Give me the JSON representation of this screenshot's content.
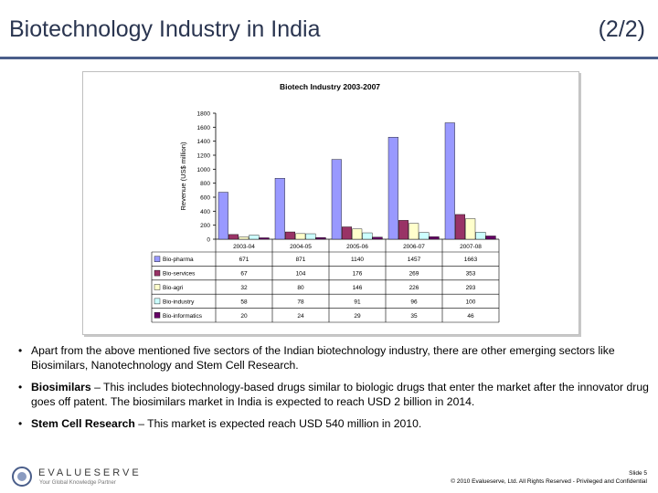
{
  "slide": {
    "title": "Biotechnology Industry in India",
    "part": "(2/2)"
  },
  "chart_data": {
    "type": "bar",
    "title": "Biotech Industry 2003-2007",
    "ylabel": "Revenue (US$ million)",
    "xlabel": "",
    "ylim": [
      0,
      1800
    ],
    "yticks": [
      0,
      200,
      400,
      600,
      800,
      1000,
      1200,
      1400,
      1600,
      1800
    ],
    "grid": false,
    "legend": "data-table",
    "categories": [
      "2003-04",
      "2004-05",
      "2005-06",
      "2006-07",
      "2007-08"
    ],
    "series": [
      {
        "name": "Bio-pharma",
        "color": "#9999ff",
        "values": [
          671,
          871,
          1140,
          1457,
          1663
        ]
      },
      {
        "name": "Bio-services",
        "color": "#993366",
        "values": [
          67,
          104,
          176,
          269,
          353
        ]
      },
      {
        "name": "Bio-agri",
        "color": "#ffffcc",
        "values": [
          32,
          80,
          146,
          226,
          293
        ]
      },
      {
        "name": "Bio-industry",
        "color": "#ccffff",
        "values": [
          58,
          78,
          91,
          96,
          100
        ]
      },
      {
        "name": "Bio-informatics",
        "color": "#660066",
        "values": [
          20,
          24,
          29,
          35,
          46
        ]
      }
    ]
  },
  "bullets": [
    {
      "bold": "",
      "text": "Apart from the above mentioned five sectors of the Indian biotechnology industry, there are other emerging sectors like Biosimilars, Nanotechnology and Stem Cell Research."
    },
    {
      "bold": "Biosimilars",
      "text": " – This includes biotechnology-based drugs similar to biologic drugs that enter the market after the innovator drug goes off patent. The biosimilars market in India is expected to reach USD 2 billion in 2014."
    },
    {
      "bold": "Stem Cell Research",
      "text": " – This market is expected reach USD 540 million in 2010."
    }
  ],
  "logo": {
    "name": "EVALUESERVE",
    "tagline": "Your Global Knowledge Partner"
  },
  "footer": {
    "slide_number": "Slide 5",
    "copyright": "© 2010 Evalueserve, Ltd. All Rights Reserved - Privileged and Confidential"
  },
  "theme": {
    "title_color": "#2a3550",
    "rule_color": "#4a5e8a"
  }
}
